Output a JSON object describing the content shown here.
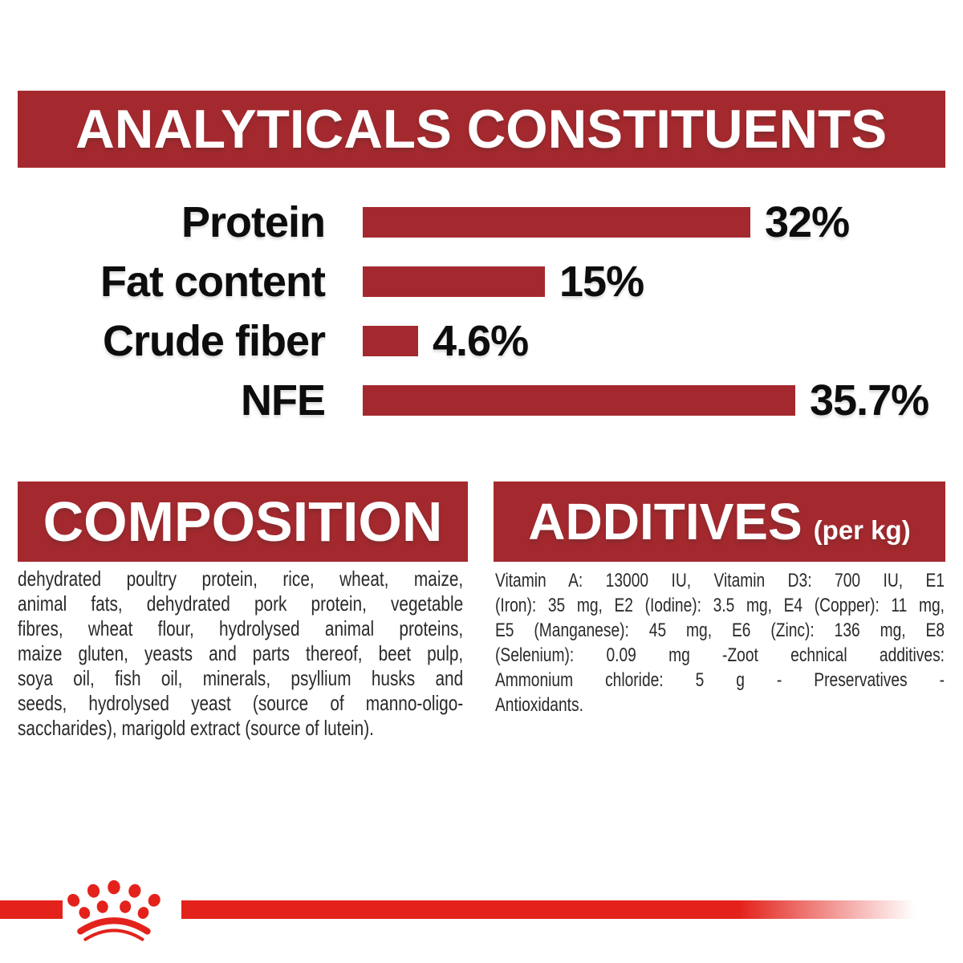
{
  "header": {
    "title": "ANALYTICALS CONSTITUENTS"
  },
  "chart_data": {
    "type": "bar",
    "orientation": "horizontal",
    "title": "ANALYTICALS CONSTITUENTS",
    "categories": [
      "Protein",
      "Fat content",
      "Crude fiber",
      "NFE"
    ],
    "values": [
      32,
      15,
      4.6,
      35.7
    ],
    "value_labels": [
      "32%",
      "15%",
      "4.6%",
      "35.7%"
    ],
    "unit": "%",
    "xlim": [
      0,
      40
    ],
    "grid": false,
    "legend": false,
    "bar_color": "#A4292E"
  },
  "composition": {
    "title": "COMPOSITION",
    "lines": [
      "dehydrated poultry protein, rice, wheat, maize,",
      "animal fats, dehydrated pork protein, vegetable",
      "fibres, wheat flour, hydrolysed animal proteins,",
      "maize gluten, yeasts and parts thereof, beet pulp,",
      "soya oil, fish oil, minerals, psyllium husks and",
      "seeds, hydrolysed yeast (source of manno-oligo-",
      "saccharides), marigold extract (source of lutein)."
    ]
  },
  "additives": {
    "title": "ADDITIVES",
    "per_kg": "(per kg)",
    "lines": [
      "Vitamin A: 13000 IU, Vitamin D3: 700 IU, E1",
      "(Iron): 35 mg, E2 (Iodine): 3.5 mg, E4 (Copper): 11 mg,",
      "E5 (Manganese): 45 mg, E6 (Zinc): 136 mg, E8",
      "(Selenium): 0.09 mg -Zoot echnical additives:",
      "Ammonium chloride: 5 g - Preservatives -",
      "Antioxidants."
    ]
  },
  "footer": {
    "logo_icon": "crown-paw-logo"
  },
  "colors": {
    "banner_red": "#A4292E",
    "brand_red": "#E3221B",
    "label_black": "#0d0d0d",
    "body_text": "#2a2a2a"
  }
}
